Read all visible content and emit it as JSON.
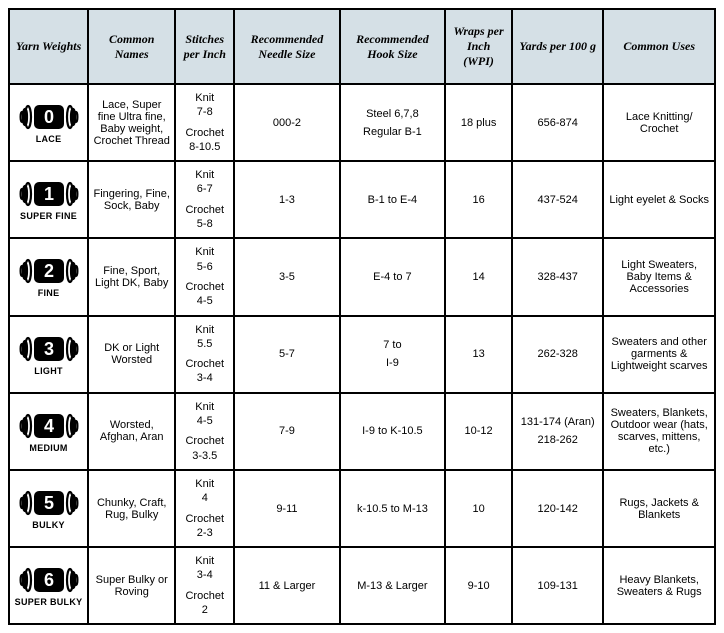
{
  "headers": {
    "weights": "Yarn Weights",
    "names": "Common Names",
    "stitches": "Stitches per Inch",
    "needle": "Recommended Needle Size",
    "hook": "Recommended Hook Size",
    "wpi": "Wraps per Inch (WPI)",
    "yards": "Yards per 100 g",
    "uses": "Common Uses"
  },
  "rows": [
    {
      "num": "0",
      "label": "LACE",
      "names": "Lace, Super fine Ultra fine, Baby weight, Crochet Thread",
      "knit_lbl": "Knit",
      "knit_val": "7-8",
      "crochet_lbl": "Crochet",
      "crochet_val": "8-10.5",
      "needle": "000-2",
      "hook1": "Steel 6,7,8",
      "hook2": "Regular B-1",
      "wpi": "18 plus",
      "yards1": "656-874",
      "yards2": "",
      "uses": "Lace Knitting/ Crochet"
    },
    {
      "num": "1",
      "label": "SUPER FINE",
      "names": "Fingering, Fine, Sock, Baby",
      "knit_lbl": "Knit",
      "knit_val": "6-7",
      "crochet_lbl": "Crochet",
      "crochet_val": "5-8",
      "needle": "1-3",
      "hook1": "B-1 to E-4",
      "hook2": "",
      "wpi": "16",
      "yards1": "437-524",
      "yards2": "",
      "uses": "Light eyelet & Socks"
    },
    {
      "num": "2",
      "label": "FINE",
      "names": "Fine, Sport, Light DK, Baby",
      "knit_lbl": "Knit",
      "knit_val": "5-6",
      "crochet_lbl": "Crochet",
      "crochet_val": "4-5",
      "needle": "3-5",
      "hook1": "E-4 to 7",
      "hook2": "",
      "wpi": "14",
      "yards1": "328-437",
      "yards2": "",
      "uses": "Light Sweaters, Baby Items & Accessories"
    },
    {
      "num": "3",
      "label": "LIGHT",
      "names": "DK or Light Worsted",
      "knit_lbl": "Knit",
      "knit_val": "5.5",
      "crochet_lbl": "Crochet",
      "crochet_val": "3-4",
      "needle": "5-7",
      "hook1": "7 to",
      "hook2": "I-9",
      "wpi": "13",
      "yards1": "262-328",
      "yards2": "",
      "uses": "Sweaters and other garments & Lightweight scarves"
    },
    {
      "num": "4",
      "label": "MEDIUM",
      "names": "Worsted, Afghan, Aran",
      "knit_lbl": "Knit",
      "knit_val": "4-5",
      "crochet_lbl": "Crochet",
      "crochet_val": "3-3.5",
      "needle": "7-9",
      "hook1": "I-9 to K-10.5",
      "hook2": "",
      "wpi": "10-12",
      "yards1": "131-174 (Aran)",
      "yards2": "218-262",
      "uses": "Sweaters, Blankets, Outdoor wear (hats, scarves, mittens, etc.)"
    },
    {
      "num": "5",
      "label": "BULKY",
      "names": "Chunky, Craft, Rug, Bulky",
      "knit_lbl": "Knit",
      "knit_val": "4",
      "crochet_lbl": "Crochet",
      "crochet_val": "2-3",
      "needle": "9-11",
      "hook1": "k-10.5 to M-13",
      "hook2": "",
      "wpi": "10",
      "yards1": "120-142",
      "yards2": "",
      "uses": "Rugs, Jackets & Blankets"
    },
    {
      "num": "6",
      "label": "SUPER BULKY",
      "names": "Super Bulky or Roving",
      "knit_lbl": "Knit",
      "knit_val": "3-4",
      "crochet_lbl": "Crochet",
      "crochet_val": "2",
      "needle": "11 & Larger",
      "hook1": "M-13 & Larger",
      "hook2": "",
      "wpi": "9-10",
      "yards1": "109-131",
      "yards2": "",
      "uses": "Heavy Blankets, Sweaters & Rugs"
    }
  ]
}
